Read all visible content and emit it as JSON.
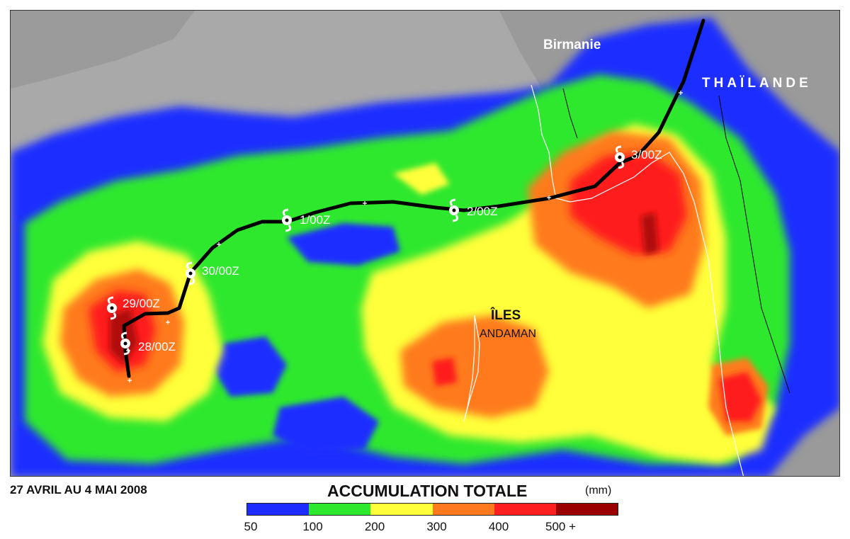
{
  "map": {
    "labels": {
      "birmanie": "Birmanie",
      "thailande": "THAÏLANDE",
      "iles": "ÎLES",
      "andaman": "ANDAMAN"
    },
    "track_points": [
      {
        "label": "28/00Z"
      },
      {
        "label": "29/00Z"
      },
      {
        "label": "30/00Z"
      },
      {
        "label": "1/00Z"
      },
      {
        "label": "2/00Z"
      },
      {
        "label": "3/00Z"
      }
    ]
  },
  "footer": {
    "date_range": "27 AVRIL AU 4 MAI 2008",
    "legend_title": "ACCUMULATION TOTALE",
    "legend_unit": "(mm)"
  },
  "legend": {
    "colors": [
      "#1e2dff",
      "#2ee82e",
      "#ffff3a",
      "#ff7a1f",
      "#ff1f1f",
      "#9b0000"
    ],
    "ticks": [
      "50",
      "100",
      "200",
      "300",
      "400",
      "500 +"
    ]
  },
  "colors": {
    "sea": "#2030f0",
    "land": "#a8a8a8",
    "track": "#000000"
  }
}
